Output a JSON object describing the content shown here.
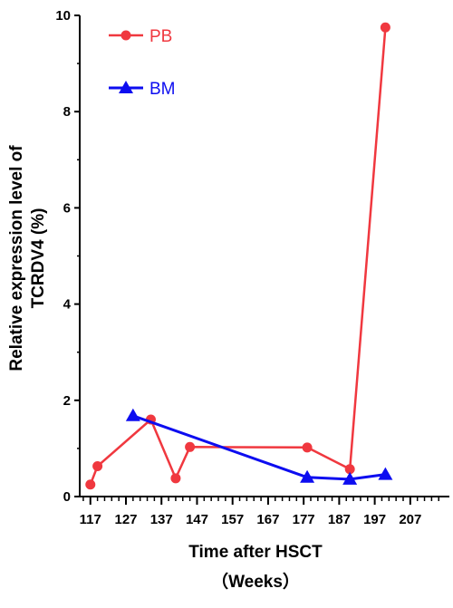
{
  "chart_data": {
    "type": "line",
    "title": "",
    "xlabel": "Time after HSCT",
    "xlabel_unit": "（Weeks）",
    "ylabel": "Relative expression level of",
    "ylabel_line2": "TCRDV4 (%)",
    "xlim": [
      114,
      218
    ],
    "ylim": [
      0,
      10
    ],
    "x_ticks": [
      117,
      127,
      137,
      147,
      157,
      167,
      177,
      187,
      197,
      207
    ],
    "y_ticks": [
      0,
      2,
      4,
      6,
      8,
      10
    ],
    "legend_position": "top-left",
    "series": [
      {
        "name": "PB",
        "color": "#f0383f",
        "marker": "circle",
        "points": [
          {
            "x": 117,
            "y": 0.25
          },
          {
            "x": 119,
            "y": 0.63
          },
          {
            "x": 134,
            "y": 1.6
          },
          {
            "x": 141,
            "y": 0.38
          },
          {
            "x": 145,
            "y": 1.03
          },
          {
            "x": 178,
            "y": 1.02
          },
          {
            "x": 190,
            "y": 0.57
          },
          {
            "x": 200,
            "y": 9.75
          }
        ]
      },
      {
        "name": "BM",
        "color": "#0d0df0",
        "marker": "triangle",
        "points": [
          {
            "x": 129,
            "y": 1.68
          },
          {
            "x": 178,
            "y": 0.4
          },
          {
            "x": 190,
            "y": 0.36
          },
          {
            "x": 200,
            "y": 0.46
          }
        ]
      }
    ]
  }
}
